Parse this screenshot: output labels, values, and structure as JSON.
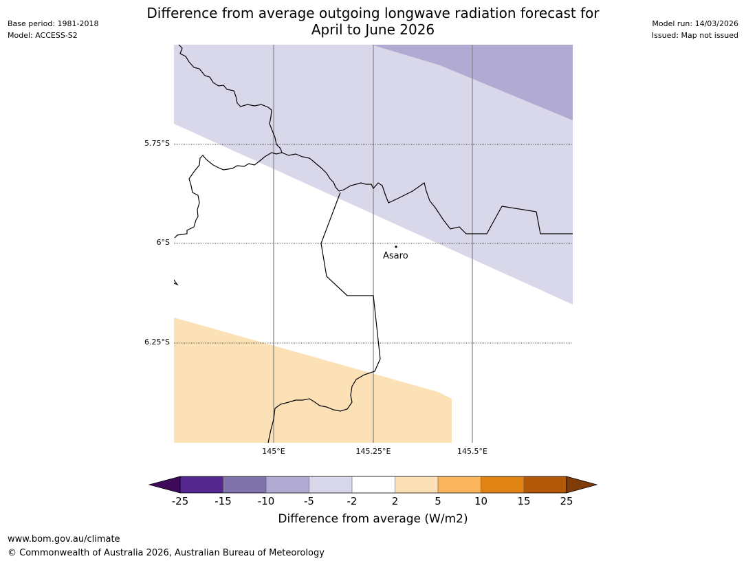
{
  "header": {
    "title_line1": "Difference from average outgoing longwave radiation forecast for",
    "title_line2": "April to June 2026",
    "base_period": "Base period: 1981-2018",
    "model": "Model: ACCESS-S2",
    "model_run": "Model run: 14/03/2026",
    "issued": "Issued: Map not issued"
  },
  "map": {
    "lat_ticks": [
      "5.75°S",
      "6°S",
      "6.25°S"
    ],
    "lon_ticks": [
      "145°E",
      "145.25°E",
      "145.5°E"
    ],
    "place": "Asaro",
    "colors": {
      "band_minus10_minus5": "#b1aad2",
      "band_minus5_minus2": "#d8d8ea",
      "band_2_5": "#fce0b6"
    }
  },
  "legend": {
    "title": "Difference from average (W/m2)",
    "labels": [
      "-25",
      "-15",
      "-10",
      "-5",
      "-2",
      "2",
      "5",
      "10",
      "15",
      "25"
    ],
    "colors": [
      "#3f0a5a",
      "#54278f",
      "#8073ac",
      "#b1aad2",
      "#d8d8ea",
      "#ffffff",
      "#fce0b6",
      "#f9b45c",
      "#e08214",
      "#b35806",
      "#7f3b08"
    ]
  },
  "footer": {
    "url": "www.bom.gov.au/climate",
    "copyright": "© Commonwealth of Australia 2026, Australian Bureau of Meteorology"
  }
}
